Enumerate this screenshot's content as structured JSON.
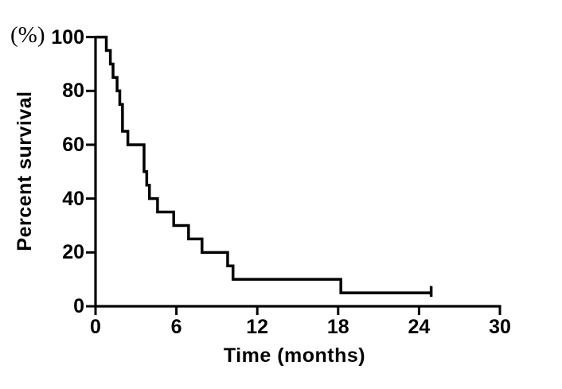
{
  "figure": {
    "background_color": "#ffffff",
    "ink_color": "#000000"
  },
  "chart_data": {
    "type": "line",
    "subtype": "kaplan-meier-step-curve",
    "title": "",
    "xlabel": "Time (months)",
    "ylabel": "Percent survival",
    "y_unit_label": "(%)",
    "xlim": [
      0,
      30
    ],
    "ylim": [
      0,
      100
    ],
    "x_ticks": [
      0,
      6,
      12,
      18,
      24,
      30
    ],
    "y_ticks": [
      100,
      80,
      60,
      40,
      20,
      0
    ],
    "grid": false,
    "legend_position": "none",
    "line_color": "#000000",
    "series": [
      {
        "points_time_percent": [
          [
            0,
            100
          ],
          [
            0.8,
            100
          ],
          [
            0.8,
            95
          ],
          [
            1.1,
            95
          ],
          [
            1.1,
            90
          ],
          [
            1.3,
            90
          ],
          [
            1.3,
            85
          ],
          [
            1.6,
            85
          ],
          [
            1.6,
            80
          ],
          [
            1.8,
            80
          ],
          [
            1.8,
            75
          ],
          [
            2.0,
            75
          ],
          [
            2.0,
            65
          ],
          [
            2.4,
            65
          ],
          [
            2.4,
            60
          ],
          [
            3.6,
            60
          ],
          [
            3.6,
            50
          ],
          [
            3.8,
            50
          ],
          [
            3.8,
            45
          ],
          [
            4.0,
            45
          ],
          [
            4.0,
            40
          ],
          [
            4.6,
            40
          ],
          [
            4.6,
            35
          ],
          [
            5.8,
            35
          ],
          [
            5.8,
            30
          ],
          [
            6.9,
            30
          ],
          [
            6.9,
            25
          ],
          [
            7.9,
            25
          ],
          [
            7.9,
            20
          ],
          [
            9.8,
            20
          ],
          [
            9.8,
            15
          ],
          [
            10.2,
            15
          ],
          [
            10.2,
            10
          ],
          [
            18.2,
            10
          ],
          [
            18.2,
            5
          ],
          [
            24.9,
            5
          ]
        ],
        "censor_marks_time_percent": [
          [
            24.9,
            5
          ]
        ]
      }
    ]
  }
}
